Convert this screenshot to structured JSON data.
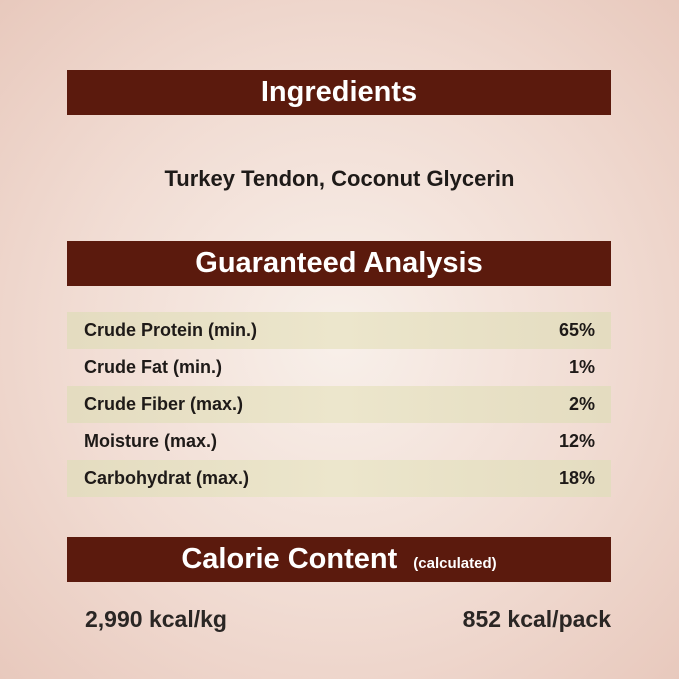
{
  "ingredients": {
    "title": "Ingredients",
    "text": "Turkey Tendon, Coconut Glycerin"
  },
  "analysis": {
    "title": "Guaranteed Analysis",
    "rows": [
      {
        "label": "Crude Protein (min.)",
        "value": "65%"
      },
      {
        "label": "Crude Fat (min.)",
        "value": "1%"
      },
      {
        "label": "Crude Fiber (max.)",
        "value": "2%"
      },
      {
        "label": "Moisture (max.)",
        "value": "12%"
      },
      {
        "label": "Carbohydrat (max.)",
        "value": "18%"
      }
    ]
  },
  "calorie": {
    "title": "Calorie Content",
    "subtitle": "(calculated)",
    "per_kg": "2,990 kcal/kg",
    "per_pack": "852 kcal/pack"
  },
  "colors": {
    "header_bar": "#5b1a0d",
    "row_shade": "#e6dfc4"
  }
}
